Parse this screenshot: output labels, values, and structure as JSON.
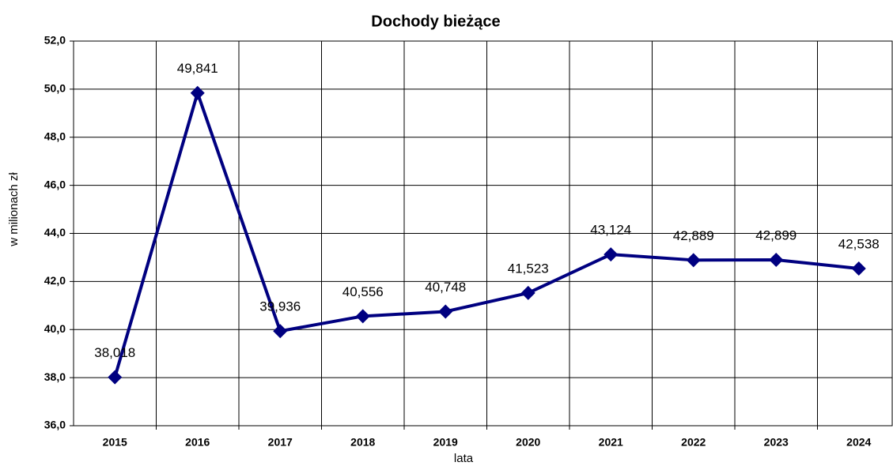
{
  "chart_data": {
    "type": "line",
    "title": "Dochody bieżące",
    "y_label": "w milionach zł",
    "x_label": "lata",
    "categories": [
      "2015",
      "2016",
      "2017",
      "2018",
      "2019",
      "2020",
      "2021",
      "2022",
      "2023",
      "2024"
    ],
    "series": [
      {
        "name": "Dochody bieżące",
        "color": "#000080",
        "values": [
          38.018,
          49.841,
          39.936,
          40.556,
          40.748,
          41.523,
          43.124,
          42.889,
          42.899,
          42.538
        ],
        "value_labels": [
          "38,018",
          "49,841",
          "39,936",
          "40,556",
          "40,748",
          "41,523",
          "43,124",
          "42,889",
          "42,899",
          "42,538"
        ]
      }
    ],
    "ylim": [
      36,
      52
    ],
    "yticks": [
      {
        "value": 36,
        "label": "36,0"
      },
      {
        "value": 38,
        "label": "38,0"
      },
      {
        "value": 40,
        "label": "40,0"
      },
      {
        "value": 42,
        "label": "42,0"
      },
      {
        "value": 44,
        "label": "44,0"
      },
      {
        "value": 46,
        "label": "46,0"
      },
      {
        "value": 48,
        "label": "48,0"
      },
      {
        "value": 50,
        "label": "50,0"
      },
      {
        "value": 52,
        "label": "52,0"
      }
    ],
    "grid": true
  }
}
